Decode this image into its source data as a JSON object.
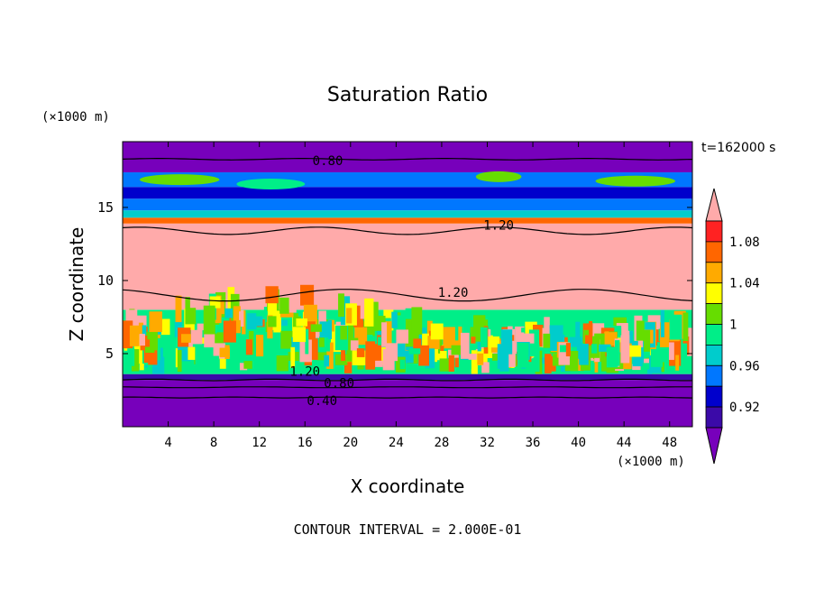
{
  "chart_data": {
    "type": "heatmap",
    "title": "Saturation Ratio",
    "xlabel": "X coordinate",
    "ylabel": "Z coordinate",
    "x_unit": "(×1000 m)",
    "y_unit": "(×1000 m)",
    "time_label": "t=162000 s",
    "footer": "CONTOUR INTERVAL = 2.000E-01",
    "xlim": [
      0,
      50
    ],
    "ylim": [
      0,
      19.5
    ],
    "x_ticks": [
      "4",
      "8",
      "12",
      "16",
      "20",
      "24",
      "28",
      "32",
      "36",
      "40",
      "44",
      "48"
    ],
    "y_ticks": [
      "5",
      "10",
      "15"
    ],
    "colorbar": {
      "labels": [
        "1.08",
        "1.04",
        "1",
        "0.96",
        "0.92"
      ],
      "levels": [
        0.9,
        0.92,
        0.94,
        0.96,
        0.98,
        1.0,
        1.02,
        1.04,
        1.06,
        1.08,
        1.1
      ],
      "colors": [
        "#7700bb",
        "#3b0aa8",
        "#0000cc",
        "#0077ff",
        "#00cccc",
        "#00ee88",
        "#66dd00",
        "#ffff00",
        "#ffaa00",
        "#ff6600",
        "#ff2222",
        "#ffaaaa"
      ]
    },
    "contour_labels": [
      {
        "text": "0.80",
        "x": 18,
        "z": 18.2
      },
      {
        "text": "1.20",
        "x": 33,
        "z": 13.8
      },
      {
        "text": "1.20",
        "x": 29,
        "z": 9.2
      },
      {
        "text": "1.20",
        "x": 16,
        "z": 3.8
      },
      {
        "text": "0.80",
        "x": 19,
        "z": 3.0
      },
      {
        "text": "0.40",
        "x": 17.5,
        "z": 1.8
      }
    ]
  }
}
